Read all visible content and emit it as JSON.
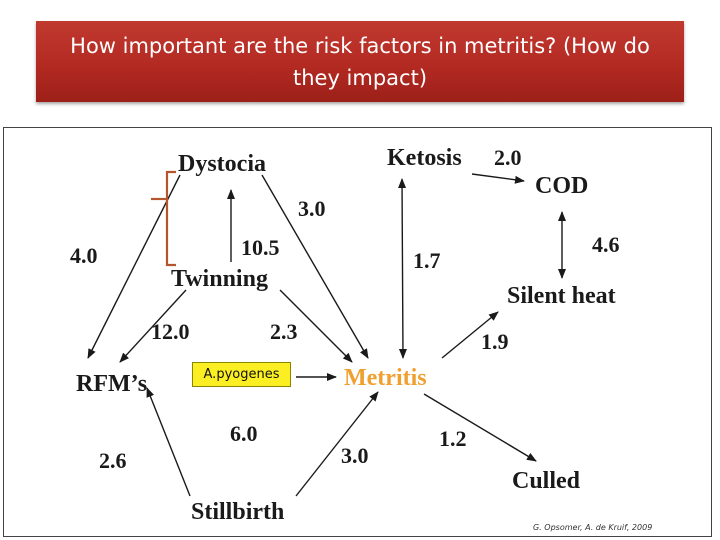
{
  "title": "How important are the risk factors in metritis? (How do they impact)",
  "nodes": {
    "dystocia": "Dystocia",
    "twinning": "Twinning",
    "rfms": "RFM’s",
    "stillbirth": "Stillbirth",
    "metritis": "Metritis",
    "ketosis": "Ketosis",
    "cod": "COD",
    "silent_heat": "Silent heat",
    "culled": "Culled"
  },
  "weights": {
    "dystocia_rfm": "4.0",
    "dystocia_metritis": "3.0",
    "twinning_dystocia": "10.5",
    "twinning_rfm": "12.0",
    "twinning_metritis": "2.3",
    "ketosis_cod": "2.0",
    "ketosis_metritis": "1.7",
    "cod_silent_heat": "4.6",
    "metritis_silent_heat": "1.9",
    "rfm_metritis": "6.0",
    "stillbirth_rfm": "2.6",
    "stillbirth_metritis": "3.0",
    "metritis_culled": "1.2"
  },
  "pathogen_label": "A.pyogenes",
  "credit": "G. Opsomer, A. de Kruif, 2009",
  "colors": {
    "banner": "#b32a22",
    "metritis": "#f0a030",
    "pathogen_box": "#fbee22",
    "bracket": "#b5552e"
  }
}
